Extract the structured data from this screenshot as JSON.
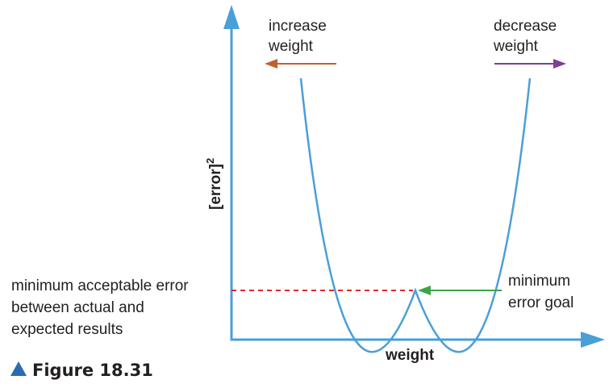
{
  "labels": {
    "increase_line1": "increase",
    "increase_line2": "weight",
    "decrease_line1": "decrease",
    "decrease_line2": "weight",
    "y_axis": "[error]",
    "y_axis_sup": "2",
    "x_axis": "weight",
    "min_acceptable_line1": "minimum acceptable error",
    "min_acceptable_line2": "between actual and",
    "min_acceptable_line3": "expected results",
    "goal_line1": "minimum",
    "goal_line2": "error goal",
    "figure_caption": "Figure 18.31"
  },
  "colors": {
    "axis": "#4a9fd8",
    "curve": "#4a9fd8",
    "increase_arrow": "#c0622f",
    "decrease_arrow": "#7d3f98",
    "goal_arrow": "#3aa548",
    "min_error_dashed_line": "#e0282e",
    "caption_triangle": "#2b6cb0",
    "text": "#231f20"
  }
}
